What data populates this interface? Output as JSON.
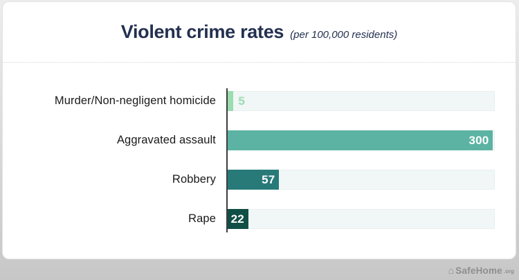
{
  "header": {
    "title": "Violent crime rates",
    "subtitle": "(per 100,000 residents)"
  },
  "chart_data": {
    "type": "bar",
    "orientation": "horizontal",
    "title": "Violent crime rates",
    "subtitle_note": "(per 100,000 residents)",
    "categories": [
      "Murder/Non-negligent homicide",
      "Aggravated assault",
      "Robbery",
      "Rape"
    ],
    "values": [
      5,
      300,
      57,
      22
    ],
    "xlim": [
      0,
      302
    ],
    "grid": false,
    "legend_position": "none",
    "bar_colors": [
      "#9bdcb0",
      "#5cb3a3",
      "#287a79",
      "#104f46"
    ],
    "value_label_placement": [
      "outside",
      "inside",
      "inside",
      "inside"
    ],
    "track_color": "#f1f6f6",
    "axis_color": "#3d3d3d"
  },
  "footer": {
    "home_icon": "⌂",
    "brand": "SafeHome",
    "brand_suffix": ".org"
  }
}
